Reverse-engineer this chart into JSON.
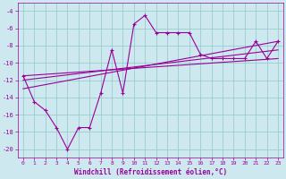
{
  "xlabel": "Windchill (Refroidissement éolien,°C)",
  "background_color": "#cde8ee",
  "grid_color": "#90c8c8",
  "line_color": "#990099",
  "xlim": [
    -0.5,
    23.5
  ],
  "ylim": [
    -21,
    -3
  ],
  "yticks": [
    -20,
    -18,
    -16,
    -14,
    -12,
    -10,
    -8,
    -6,
    -4
  ],
  "xticks": [
    0,
    1,
    2,
    3,
    4,
    5,
    6,
    7,
    8,
    9,
    10,
    11,
    12,
    13,
    14,
    15,
    16,
    17,
    18,
    19,
    20,
    21,
    22,
    23
  ],
  "x": [
    0,
    1,
    2,
    3,
    4,
    5,
    6,
    7,
    8,
    9,
    10,
    11,
    12,
    13,
    14,
    15,
    16,
    17,
    18,
    19,
    20,
    21,
    22,
    23
  ],
  "y": [
    -11.5,
    -14.5,
    -15.5,
    -17.5,
    -20.0,
    -17.5,
    -17.5,
    -13.5,
    -8.5,
    -13.5,
    -5.5,
    -4.5,
    -6.5,
    -6.5,
    -6.5,
    -6.5,
    -9.0,
    -9.5,
    -9.5,
    -9.5,
    -9.5,
    -7.5,
    -9.5,
    -7.5
  ],
  "linear_lines": [
    {
      "x": [
        0,
        23
      ],
      "y": [
        -11.5,
        -9.5
      ]
    },
    {
      "x": [
        0,
        23
      ],
      "y": [
        -12.0,
        -8.5
      ]
    },
    {
      "x": [
        0,
        23
      ],
      "y": [
        -13.0,
        -7.5
      ]
    }
  ]
}
